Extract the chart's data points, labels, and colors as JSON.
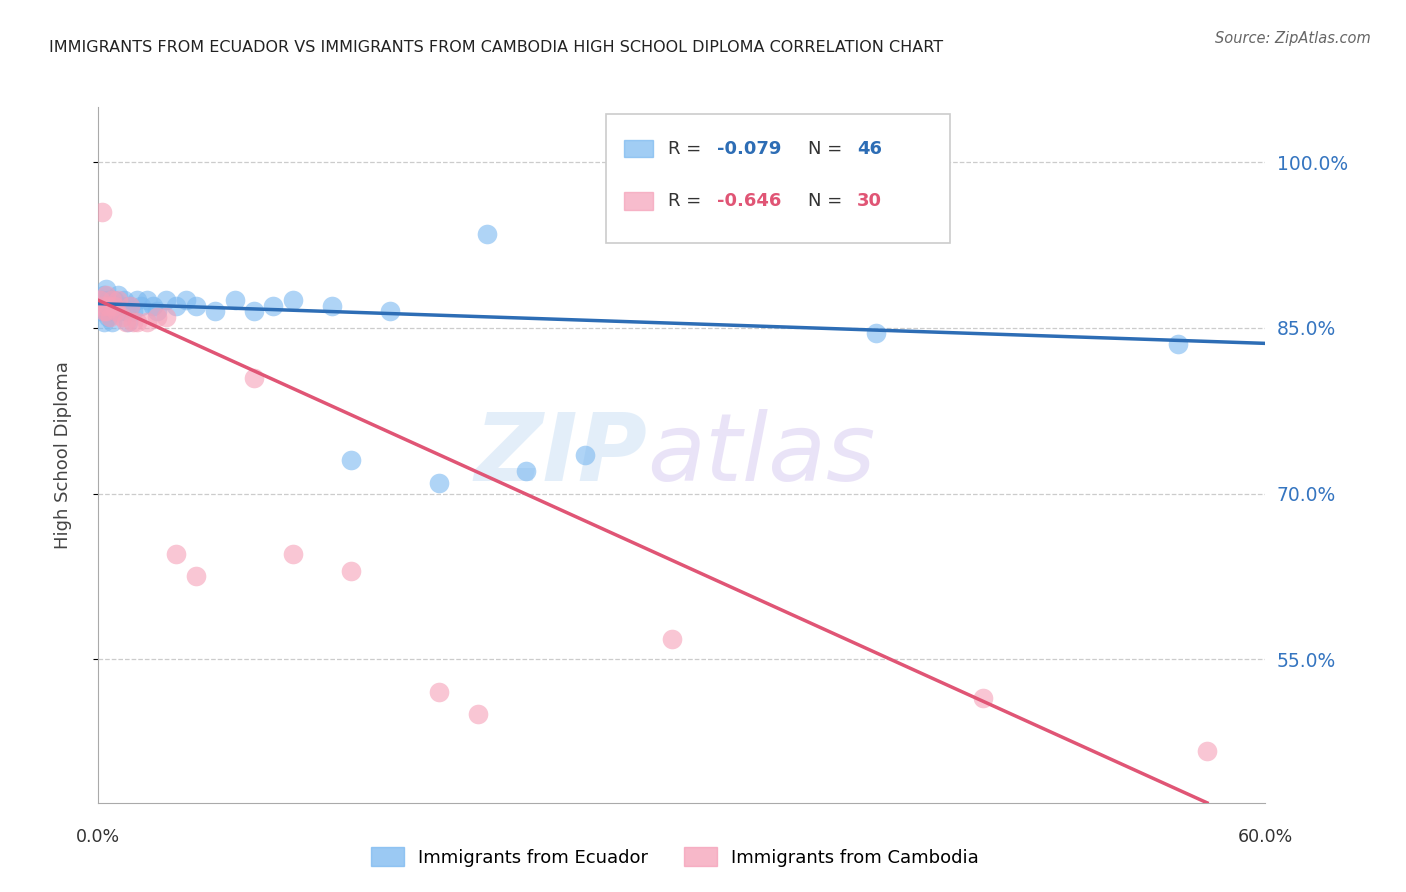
{
  "title": "IMMIGRANTS FROM ECUADOR VS IMMIGRANTS FROM CAMBODIA HIGH SCHOOL DIPLOMA CORRELATION CHART",
  "source": "Source: ZipAtlas.com",
  "ylabel": "High School Diploma",
  "ecuador_color": "#7ab8f0",
  "cambodia_color": "#f5a0b8",
  "ecuador_line_color": "#2d6db5",
  "cambodia_line_color": "#e05575",
  "x_min": 0.0,
  "x_max": 0.6,
  "y_min": 0.42,
  "y_max": 1.05,
  "y_ticks": [
    0.55,
    0.7,
    0.85,
    1.0
  ],
  "y_tick_labels": [
    "55.0%",
    "70.0%",
    "85.0%",
    "100.0%"
  ],
  "ecuador_line_x": [
    0.0,
    0.6
  ],
  "ecuador_line_y": [
    0.872,
    0.836
  ],
  "cambodia_line_x": [
    0.0,
    0.57
  ],
  "cambodia_line_y": [
    0.875,
    0.42
  ],
  "ecuador_points_x": [
    0.001,
    0.001,
    0.002,
    0.003,
    0.003,
    0.004,
    0.005,
    0.005,
    0.006,
    0.007,
    0.007,
    0.008,
    0.009,
    0.01,
    0.01,
    0.011,
    0.012,
    0.013,
    0.014,
    0.015,
    0.016,
    0.018,
    0.02,
    0.022,
    0.025,
    0.028,
    0.03,
    0.035,
    0.04,
    0.045,
    0.05,
    0.06,
    0.07,
    0.08,
    0.09,
    0.1,
    0.12,
    0.13,
    0.15,
    0.175,
    0.2,
    0.22,
    0.25,
    0.3,
    0.4,
    0.555
  ],
  "ecuador_points_y": [
    0.87,
    0.865,
    0.875,
    0.88,
    0.855,
    0.885,
    0.86,
    0.875,
    0.865,
    0.87,
    0.855,
    0.875,
    0.865,
    0.87,
    0.88,
    0.865,
    0.87,
    0.875,
    0.865,
    0.855,
    0.87,
    0.865,
    0.875,
    0.87,
    0.875,
    0.87,
    0.865,
    0.875,
    0.87,
    0.875,
    0.87,
    0.865,
    0.875,
    0.865,
    0.87,
    0.875,
    0.87,
    0.73,
    0.865,
    0.71,
    0.935,
    0.72,
    0.735,
    0.96,
    0.845,
    0.835
  ],
  "cambodia_points_x": [
    0.001,
    0.002,
    0.002,
    0.003,
    0.004,
    0.004,
    0.005,
    0.006,
    0.007,
    0.008,
    0.009,
    0.01,
    0.012,
    0.014,
    0.016,
    0.018,
    0.02,
    0.025,
    0.03,
    0.035,
    0.04,
    0.05,
    0.08,
    0.1,
    0.13,
    0.175,
    0.195,
    0.295,
    0.455,
    0.57
  ],
  "cambodia_points_y": [
    0.875,
    0.87,
    0.955,
    0.865,
    0.88,
    0.865,
    0.87,
    0.86,
    0.875,
    0.87,
    0.865,
    0.875,
    0.86,
    0.855,
    0.87,
    0.855,
    0.855,
    0.855,
    0.86,
    0.86,
    0.645,
    0.625,
    0.805,
    0.645,
    0.63,
    0.52,
    0.5,
    0.568,
    0.515,
    0.467
  ],
  "legend_r1": "R = ",
  "legend_v1": "-0.079",
  "legend_n1": "N = ",
  "legend_nv1": "46",
  "legend_r2": "R = ",
  "legend_v2": "-0.646",
  "legend_n2": "N = ",
  "legend_nv2": "30",
  "watermark_zip": "ZIP",
  "watermark_atlas": "atlas"
}
